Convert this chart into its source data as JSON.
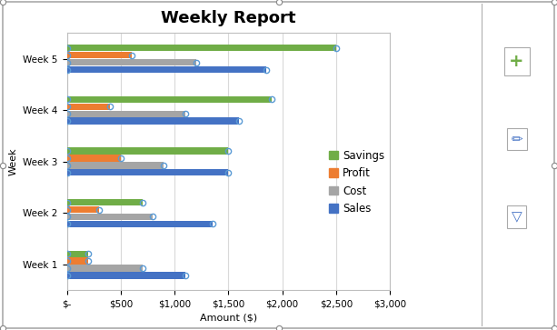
{
  "title": "Weekly Report",
  "xlabel": "Amount ($)",
  "ylabel": "Week",
  "categories": [
    "Week 1",
    "Week 2",
    "Week 3",
    "Week 4",
    "Week 5"
  ],
  "series": {
    "Savings": [
      200,
      700,
      1500,
      1900,
      2500
    ],
    "Profit": [
      200,
      300,
      500,
      400,
      600
    ],
    "Cost": [
      700,
      800,
      900,
      1100,
      1200
    ],
    "Sales": [
      1100,
      1350,
      1500,
      1600,
      1850
    ]
  },
  "colors": {
    "Savings": "#70AD47",
    "Profit": "#ED7D31",
    "Cost": "#A5A5A5",
    "Sales": "#4472C4"
  },
  "legend_order": [
    "Savings",
    "Profit",
    "Cost",
    "Sales"
  ],
  "xlim": [
    0,
    3000
  ],
  "xticks": [
    0,
    500,
    1000,
    1500,
    2000,
    2500,
    3000
  ],
  "xtick_labels": [
    "$-",
    "$500",
    "$1,000",
    "$1,500",
    "$2,000",
    "$2,500",
    "$3,000"
  ],
  "background_color": "#FFFFFF",
  "plot_bg_color": "#FFFFFF",
  "title_fontsize": 13,
  "axis_label_fontsize": 8,
  "tick_fontsize": 7.5,
  "legend_fontsize": 8.5,
  "bar_height": 0.13,
  "bar_spacing": 0.14,
  "endpoint_marker_color": "#5B9BD5",
  "endpoint_marker_size": 4.5,
  "grid_color": "#D9D9D9",
  "spine_color": "#BFBFBF"
}
